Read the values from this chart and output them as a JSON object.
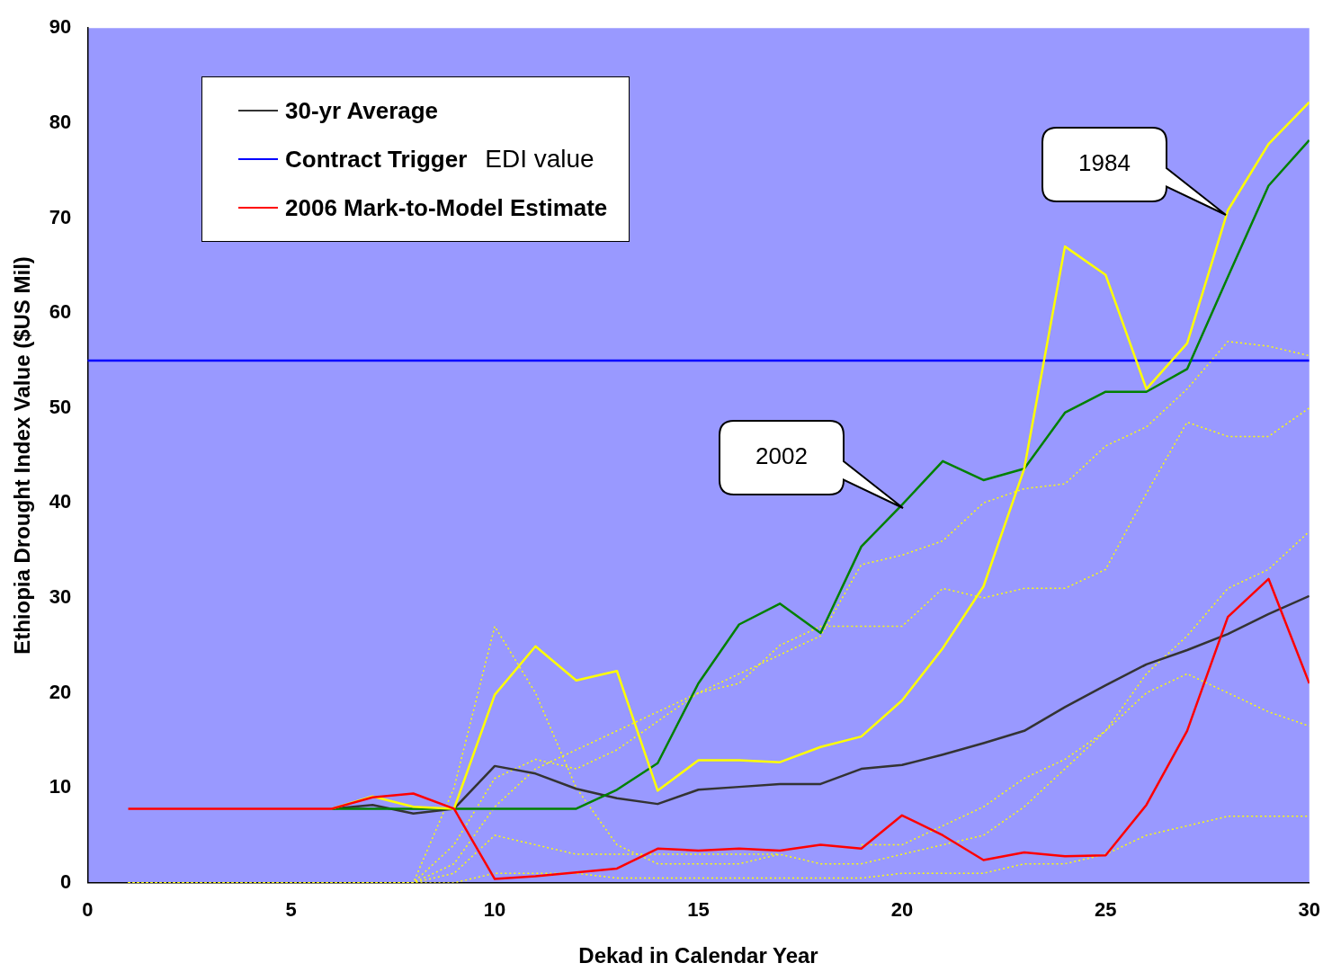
{
  "chart_data": {
    "type": "line",
    "xlabel": "Dekad in Calendar Year",
    "ylabel": "Ethiopia Drought Index Value ($US Mil)",
    "x": [
      1,
      2,
      3,
      4,
      5,
      6,
      7,
      8,
      9,
      10,
      11,
      12,
      13,
      14,
      15,
      16,
      17,
      18,
      19,
      20,
      21,
      22,
      23,
      24,
      25,
      26,
      27,
      28,
      29,
      30
    ],
    "xlim": [
      0,
      30
    ],
    "xticks": [
      0,
      5,
      10,
      15,
      20,
      25,
      30
    ],
    "ylim": [
      0,
      90
    ],
    "yticks": [
      0,
      10,
      20,
      30,
      40,
      50,
      60,
      70,
      80,
      90
    ],
    "grid": false,
    "legend": "top left",
    "marker": "none",
    "line_style": "solid",
    "series": [
      {
        "color": "#ffff00",
        "line_style": "dotted",
        "values": [
          0,
          0,
          0,
          0,
          0,
          0,
          0,
          0,
          2,
          8,
          12,
          14,
          16,
          18,
          20,
          22,
          24,
          26,
          33.5,
          34.5,
          36,
          40,
          41.5,
          42,
          46,
          48,
          52,
          57,
          56.5,
          55.5
        ]
      },
      {
        "color": "#ffff00",
        "line_style": "dotted",
        "values": [
          0,
          0,
          0,
          0,
          0,
          0,
          0,
          0,
          4,
          11,
          13,
          12,
          14,
          17,
          20,
          21,
          25,
          27,
          27,
          27,
          31,
          30,
          31,
          31,
          33,
          41,
          48.5,
          47,
          47,
          50
        ]
      },
      {
        "color": "#ffff00",
        "line_style": "dotted",
        "values": [
          0,
          0,
          0,
          0,
          0,
          0,
          0,
          0,
          10,
          27,
          20,
          10,
          4,
          2,
          2,
          2,
          3,
          2,
          2,
          3,
          4,
          5,
          8,
          12,
          16,
          22,
          26,
          31,
          33,
          37
        ]
      },
      {
        "color": "#ffff00",
        "line_style": "dotted",
        "values": [
          0,
          0,
          0,
          0,
          0,
          0,
          0,
          0,
          1,
          5,
          4,
          3,
          3,
          3,
          3,
          3,
          3,
          null,
          4,
          4,
          6,
          8,
          11,
          13,
          16,
          20,
          22,
          20,
          18,
          16.5
        ]
      },
      {
        "color": "#ffff00",
        "line_style": "dotted",
        "values": [
          0,
          0,
          0,
          0,
          0,
          0,
          0,
          0,
          0,
          1,
          1,
          1,
          0.5,
          0.5,
          0.5,
          0.5,
          0.5,
          0.5,
          0.5,
          1,
          1,
          1,
          2,
          2,
          3,
          5,
          6,
          7,
          7,
          7
        ]
      },
      {
        "name": "30-yr Average",
        "color": "#333333",
        "values": [
          null,
          null,
          null,
          null,
          null,
          7.8,
          8.2,
          7.3,
          7.8,
          12.3,
          11.5,
          9.9,
          8.9,
          8.3,
          9.8,
          10.1,
          10.4,
          10.4,
          12.0,
          12.4,
          13.5,
          14.7,
          16.0,
          18.5,
          20.8,
          23.0,
          24.5,
          26.2,
          28.3,
          30.2
        ]
      },
      {
        "name": "Contract Trigger",
        "color": "#0000ff",
        "x": [
          0,
          30
        ],
        "values": [
          55,
          55
        ]
      },
      {
        "color": "#008000",
        "values": [
          null,
          null,
          null,
          null,
          null,
          7.8,
          7.8,
          7.8,
          7.8,
          7.8,
          7.8,
          7.8,
          9.8,
          12.6,
          21,
          27.2,
          29.4,
          26.3,
          35.4,
          39.8,
          44.4,
          42.4,
          43.6,
          49.5,
          51.7,
          51.7,
          54.1,
          63.8,
          73.4,
          78.2
        ]
      },
      {
        "color": "#ffff00",
        "values": [
          null,
          null,
          null,
          null,
          null,
          7.8,
          9.1,
          8.0,
          7.8,
          19.8,
          24.9,
          21.3,
          22.3,
          9.7,
          12.9,
          12.9,
          12.7,
          14.3,
          15.4,
          19.2,
          24.7,
          31.2,
          43.6,
          67.0,
          64.0,
          52.0,
          56.8,
          70.8,
          77.8,
          82.2
        ]
      },
      {
        "name": "2006 Mark-to-Model Estimate",
        "color": "#ff0000",
        "values": [
          7.8,
          7.8,
          7.8,
          7.8,
          7.8,
          7.8,
          9.0,
          9.4,
          7.8,
          0.4,
          0.7,
          1.1,
          1.5,
          3.6,
          3.4,
          3.6,
          3.4,
          4.0,
          3.6,
          7.1,
          5.0,
          2.4,
          3.2,
          2.8,
          2.9,
          8.2,
          16,
          28,
          32,
          21
        ]
      }
    ],
    "annotations": [
      "EDI value",
      "1984",
      "2002"
    ]
  }
}
